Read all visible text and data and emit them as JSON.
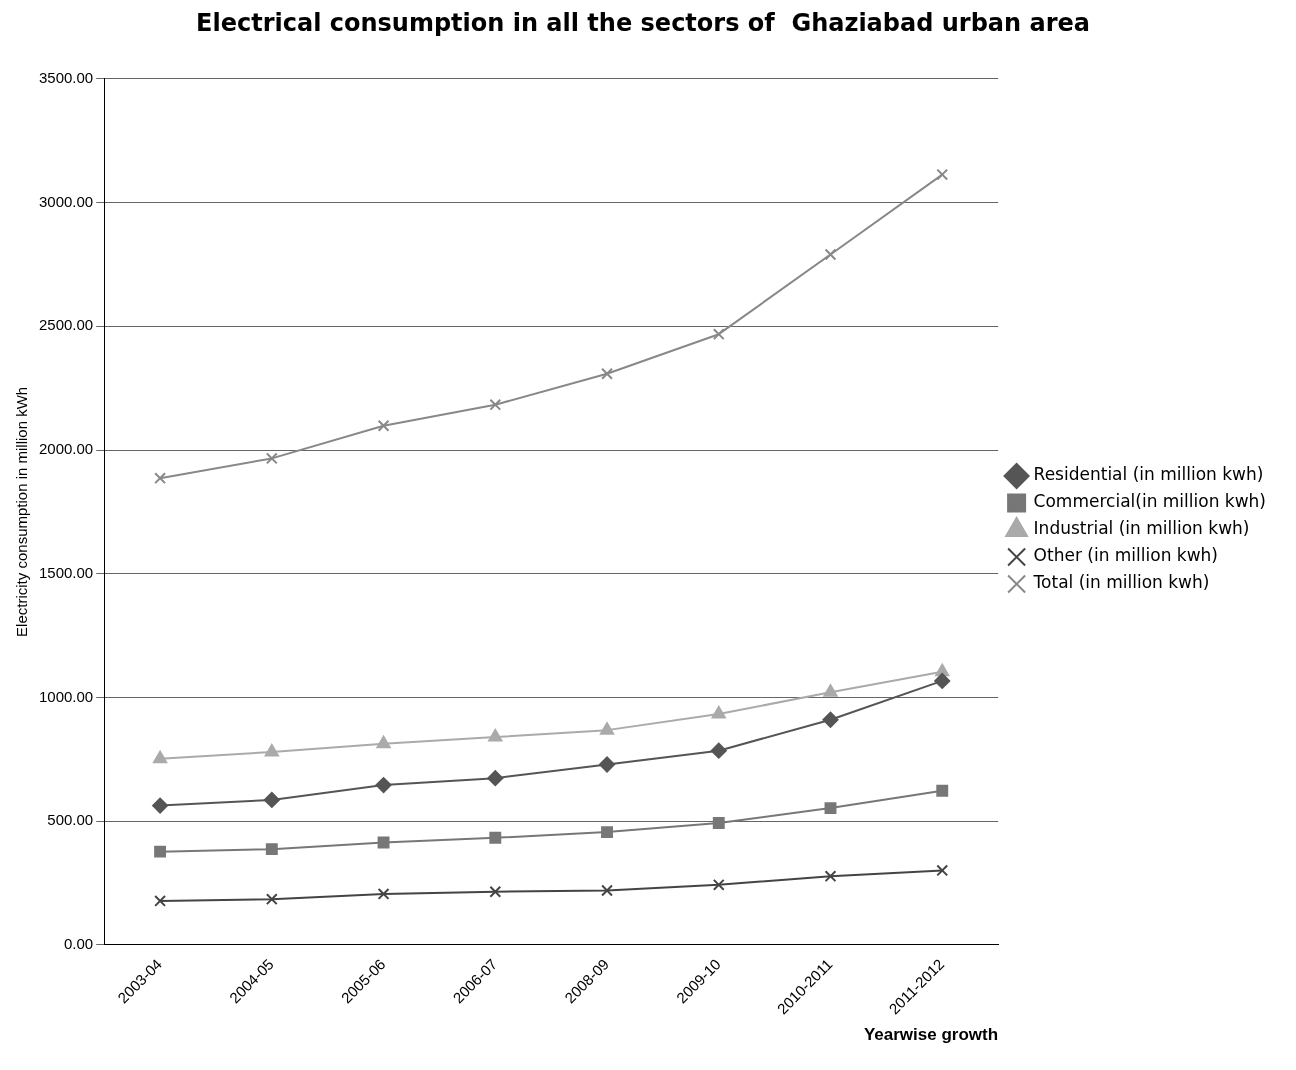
{
  "chart_data": {
    "type": "line",
    "title": "Electrical consumption in all the sectors of  Ghaziabad urban area",
    "xlabel": "Yearwise growth",
    "ylabel": "Electricity consumption in million kWh",
    "categories": [
      "2003-04",
      "2004-05",
      "2005-06",
      "2006-07",
      "2008-09",
      "2009-10",
      "2010-2011",
      "2011-2012"
    ],
    "series": [
      {
        "name": "Residential (in million kwh)",
        "color": "#555555",
        "marker": "diamond",
        "values": [
          563,
          586,
          646,
          674,
          729,
          785,
          910,
          1067
        ]
      },
      {
        "name": "Commercial(in million kwh)",
        "color": "#777777",
        "marker": "square",
        "values": [
          377,
          387,
          414,
          433,
          456,
          493,
          553,
          623
        ]
      },
      {
        "name": "Industrial (in million kwh)",
        "color": "#aaaaaa",
        "marker": "triangle",
        "values": [
          752,
          780,
          813,
          840,
          868,
          933,
          1021,
          1104
        ]
      },
      {
        "name": "Other (in million kwh)",
        "color": "#444444",
        "marker": "cross",
        "values": [
          178,
          185,
          206,
          215,
          220,
          243,
          278,
          301
        ]
      },
      {
        "name": "Total (in million kwh)",
        "color": "#888888",
        "marker": "cross",
        "values": [
          1886,
          1966,
          2098,
          2183,
          2308,
          2468,
          2790,
          3113
        ]
      }
    ],
    "ylim": [
      0,
      3500
    ],
    "yticks": [
      {
        "value": 0,
        "label": "0.00"
      },
      {
        "value": 500,
        "label": "500.00"
      },
      {
        "value": 1000,
        "label": "1000.00"
      },
      {
        "value": 1500,
        "label": "1500.00"
      },
      {
        "value": 2000,
        "label": "2000.00"
      },
      {
        "value": 2500,
        "label": "2500.00"
      },
      {
        "value": 3000,
        "label": "3000.00"
      },
      {
        "value": 3500,
        "label": "3500.00"
      }
    ],
    "grid": "y",
    "legend": "right",
    "line_style": "solid"
  }
}
